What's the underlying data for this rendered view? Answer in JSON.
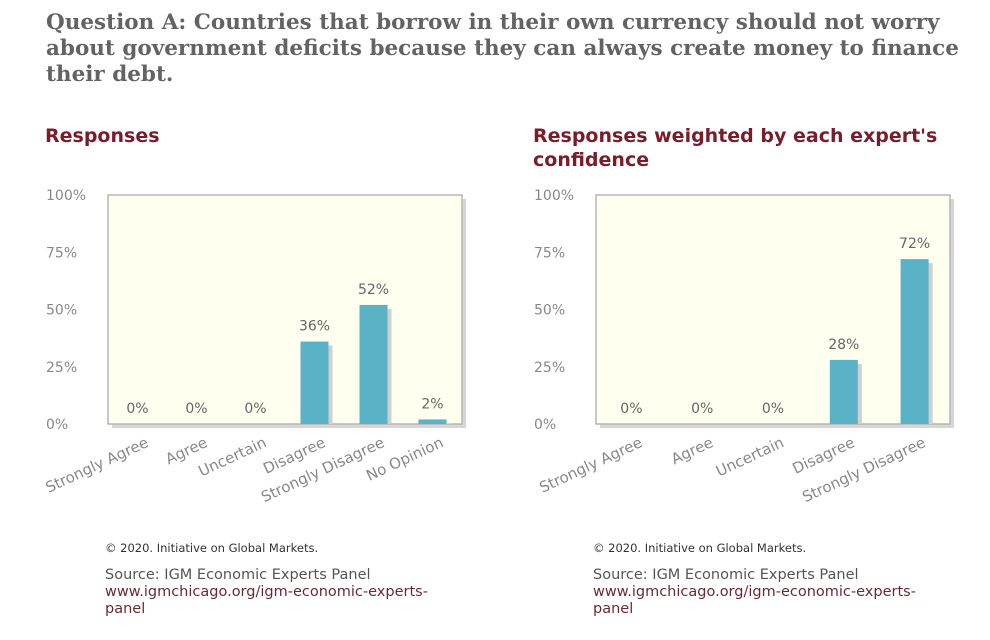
{
  "question": "Question A: Countries that borrow in their own currency should not worry about government deficits because they can always create money to finance their debt.",
  "colors": {
    "bar": "#5ab2c6",
    "plot_bg": "#fffff0",
    "title": "#7a1c2a"
  },
  "chart_data": [
    {
      "type": "bar",
      "title": "Responses",
      "categories": [
        "Strongly Agree",
        "Agree",
        "Uncertain",
        "Disagree",
        "Strongly Disagree",
        "No Opinion"
      ],
      "values": [
        0,
        0,
        0,
        36,
        52,
        2
      ],
      "value_labels": [
        "0%",
        "0%",
        "0%",
        "36%",
        "52%",
        "2%"
      ],
      "yticks": [
        "0%",
        "25%",
        "50%",
        "75%",
        "100%"
      ],
      "ylim": [
        0,
        100
      ],
      "grid": false
    },
    {
      "type": "bar",
      "title": "Responses weighted by each expert's confidence",
      "categories": [
        "Strongly Agree",
        "Agree",
        "Uncertain",
        "Disagree",
        "Strongly Disagree"
      ],
      "values": [
        0,
        0,
        0,
        28,
        72
      ],
      "value_labels": [
        "0%",
        "0%",
        "0%",
        "28%",
        "72%"
      ],
      "yticks": [
        "0%",
        "25%",
        "50%",
        "75%",
        "100%"
      ],
      "ylim": [
        0,
        100
      ],
      "grid": false
    }
  ],
  "footer": {
    "copyright": "© 2020. Initiative on Global Markets.",
    "source": "Source: IGM Economic Experts Panel",
    "url": "www.igmchicago.org/igm-economic-experts-panel"
  }
}
